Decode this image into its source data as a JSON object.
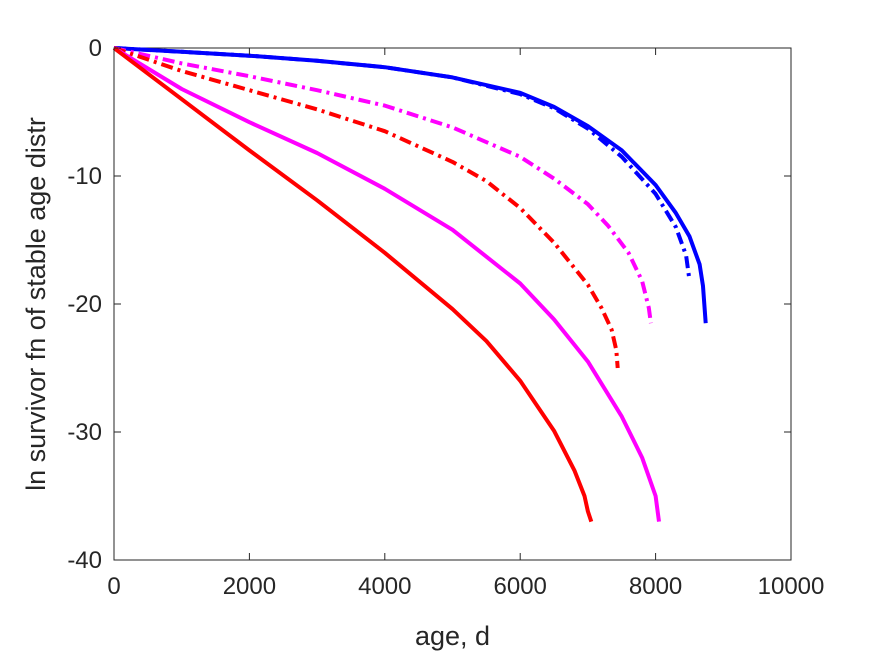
{
  "chart_data": {
    "type": "line",
    "xlabel": "age, d",
    "ylabel": "ln survivor fn of stable age distr",
    "xlim": [
      0,
      10000
    ],
    "ylim": [
      -40,
      0
    ],
    "x_ticks": [
      "0",
      "2000",
      "4000",
      "6000",
      "8000",
      "10000"
    ],
    "y_ticks": [
      "0",
      "-10",
      "-20",
      "-30",
      "-40"
    ],
    "grid": false,
    "legend": "none",
    "series": [
      {
        "color": "#0000ff",
        "style": "solid",
        "x": [
          0,
          1000,
          2000,
          3000,
          4000,
          5000,
          6000,
          6500,
          7000,
          7500,
          8000,
          8300,
          8500,
          8650,
          8700,
          8720,
          8740
        ],
        "y": [
          0,
          -0.3,
          -0.6,
          -1.0,
          -1.5,
          -2.3,
          -3.5,
          -4.6,
          -6.1,
          -8.0,
          -10.7,
          -12.9,
          -14.7,
          -16.9,
          -18.6,
          -20.0,
          -21.5
        ]
      },
      {
        "color": "#0000ff",
        "style": "dashdot",
        "x": [
          0,
          1000,
          2000,
          3000,
          4000,
          5000,
          6000,
          6500,
          7000,
          7500,
          8000,
          8300,
          8450,
          8500
        ],
        "y": [
          0,
          -0.3,
          -0.6,
          -1.0,
          -1.5,
          -2.3,
          -3.6,
          -4.7,
          -6.3,
          -8.5,
          -11.4,
          -14.0,
          -16.2,
          -18.1
        ]
      },
      {
        "color": "#ff00ff",
        "style": "dashdot",
        "x": [
          0,
          1000,
          2000,
          3000,
          4000,
          5000,
          6000,
          6500,
          7000,
          7300,
          7600,
          7800,
          7900,
          7930
        ],
        "y": [
          0,
          -1.2,
          -2.2,
          -3.3,
          -4.5,
          -6.2,
          -8.5,
          -10.2,
          -12.2,
          -13.9,
          -16.0,
          -18.2,
          -20.3,
          -21.5
        ]
      },
      {
        "color": "#ff0000",
        "style": "dashdot",
        "x": [
          0,
          1000,
          2000,
          3000,
          4000,
          5000,
          5500,
          6000,
          6500,
          7000,
          7200,
          7350,
          7420,
          7440
        ],
        "y": [
          0,
          -1.8,
          -3.3,
          -4.8,
          -6.5,
          -8.9,
          -10.4,
          -12.5,
          -15.2,
          -18.5,
          -20.3,
          -22.0,
          -23.6,
          -25.0
        ]
      },
      {
        "color": "#ff00ff",
        "style": "solid",
        "x": [
          0,
          1000,
          2000,
          3000,
          4000,
          5000,
          6000,
          6500,
          7000,
          7500,
          7800,
          8000,
          8050
        ],
        "y": [
          0,
          -3.2,
          -5.8,
          -8.2,
          -11.0,
          -14.2,
          -18.4,
          -21.2,
          -24.5,
          -28.8,
          -32.0,
          -35.0,
          -37.0
        ]
      },
      {
        "color": "#ff0000",
        "style": "solid",
        "x": [
          0,
          1000,
          2000,
          3000,
          4000,
          5000,
          5500,
          6000,
          6500,
          6800,
          6950,
          7000,
          7050
        ],
        "y": [
          0,
          -4.0,
          -8.0,
          -11.9,
          -16.0,
          -20.4,
          -22.9,
          -26.0,
          -29.9,
          -33.0,
          -35.0,
          -36.2,
          -37.0
        ]
      }
    ]
  }
}
